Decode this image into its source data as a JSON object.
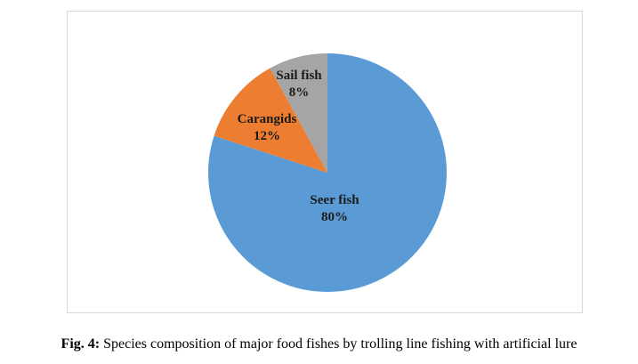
{
  "chart_data": {
    "type": "pie",
    "title": "",
    "slices": [
      {
        "label": "Seer fish",
        "value": 80,
        "value_label": "80%",
        "color": "#5b9bd5"
      },
      {
        "label": "Carangids",
        "value": 12,
        "value_label": "12%",
        "color": "#ed7d31"
      },
      {
        "label": "Sail fish",
        "value": 8,
        "value_label": "8%",
        "color": "#a5a5a5"
      }
    ],
    "start": "12 o'clock",
    "direction": "clockwise",
    "legend": "none",
    "labels": "on slices"
  },
  "caption": {
    "label": "Fig. 4:",
    "text": " Species composition of major food fishes by trolling line fishing with artificial lure"
  }
}
